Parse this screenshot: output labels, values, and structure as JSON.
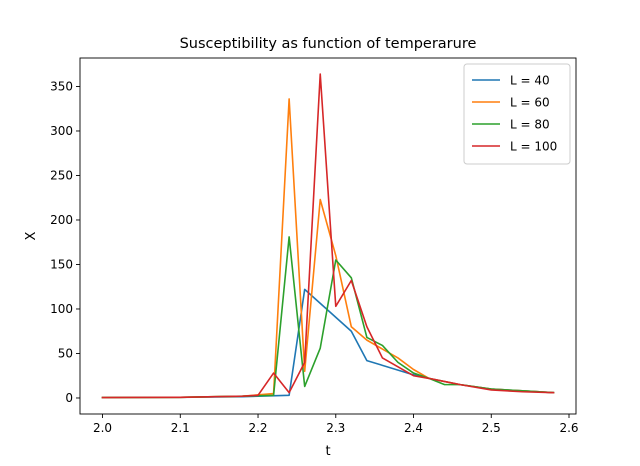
{
  "chart_data": {
    "type": "line",
    "title": "Susceptibility as function of temperarure",
    "xlabel": "t",
    "ylabel": "X",
    "xlim": [
      1.971,
      2.609
    ],
    "ylim": [
      -18,
      382
    ],
    "xticks": [
      2.0,
      2.1,
      2.2,
      2.3,
      2.4,
      2.5,
      2.6
    ],
    "xtick_labels": [
      "2.0",
      "2.1",
      "2.2",
      "2.3",
      "2.4",
      "2.5",
      "2.6"
    ],
    "yticks": [
      0,
      50,
      100,
      150,
      200,
      250,
      300,
      350
    ],
    "ytick_labels": [
      "0",
      "50",
      "100",
      "150",
      "200",
      "250",
      "300",
      "350"
    ],
    "grid": false,
    "legend_position": "top-right",
    "series": [
      {
        "name": "L = 40",
        "color": "#1f77b4",
        "x": [
          2.0,
          2.1,
          2.18,
          2.24,
          2.26,
          2.32,
          2.34,
          2.4,
          2.42,
          2.46,
          2.5,
          2.54,
          2.58
        ],
        "y": [
          0.5,
          0.8,
          1.5,
          3,
          122,
          75,
          42,
          26,
          22,
          15,
          10,
          8,
          6
        ]
      },
      {
        "name": "L = 60",
        "color": "#ff7f0e",
        "x": [
          2.0,
          2.1,
          2.18,
          2.22,
          2.24,
          2.26,
          2.28,
          2.3,
          2.32,
          2.34,
          2.36,
          2.38,
          2.4,
          2.42,
          2.46,
          2.5,
          2.54,
          2.58
        ],
        "y": [
          0.5,
          0.8,
          2,
          5,
          336,
          30,
          223,
          160,
          80,
          65,
          55,
          45,
          32,
          22,
          15,
          10,
          8,
          6
        ]
      },
      {
        "name": "L = 80",
        "color": "#2ca02c",
        "x": [
          2.0,
          2.1,
          2.18,
          2.22,
          2.24,
          2.26,
          2.28,
          2.3,
          2.32,
          2.34,
          2.36,
          2.38,
          2.4,
          2.42,
          2.44,
          2.46,
          2.5,
          2.54,
          2.58
        ],
        "y": [
          0.5,
          0.8,
          2,
          3,
          181,
          13,
          56,
          155,
          135,
          68,
          59,
          40,
          28,
          22,
          15,
          15,
          10,
          8,
          6
        ]
      },
      {
        "name": "L = 100",
        "color": "#d62728",
        "x": [
          2.0,
          2.1,
          2.18,
          2.2,
          2.22,
          2.24,
          2.26,
          2.28,
          2.3,
          2.32,
          2.34,
          2.36,
          2.4,
          2.42,
          2.46,
          2.5,
          2.54,
          2.58
        ],
        "y": [
          0.5,
          0.8,
          2,
          3,
          28,
          6,
          40,
          364,
          103,
          132,
          80,
          45,
          25,
          22,
          15,
          9,
          7,
          6
        ]
      }
    ]
  }
}
